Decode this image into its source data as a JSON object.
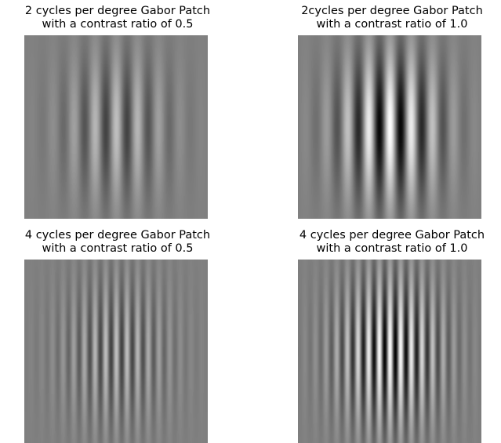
{
  "panels": [
    {
      "title_line1": "2 cycles per degree Gabor Patch",
      "title_line2": "with a contrast ratio of 0.5",
      "cycles_per_degree": 2,
      "contrast": 0.5
    },
    {
      "title_line1": "2cycles per degree Gabor Patch",
      "title_line2": "with a contrast ratio of 1.0",
      "cycles_per_degree": 2,
      "contrast": 1.0
    },
    {
      "title_line1": "4 cycles per degree Gabor Patch",
      "title_line2": "with a contrast ratio of 0.5",
      "cycles_per_degree": 4,
      "contrast": 0.5
    },
    {
      "title_line1": "4 cycles per degree Gabor Patch",
      "title_line2": "with a contrast ratio of 1.0",
      "cycles_per_degree": 4,
      "contrast": 1.0
    }
  ],
  "colors": {
    "background_gray": "#808080",
    "page_background": "#ffffff",
    "text": "#000000"
  }
}
